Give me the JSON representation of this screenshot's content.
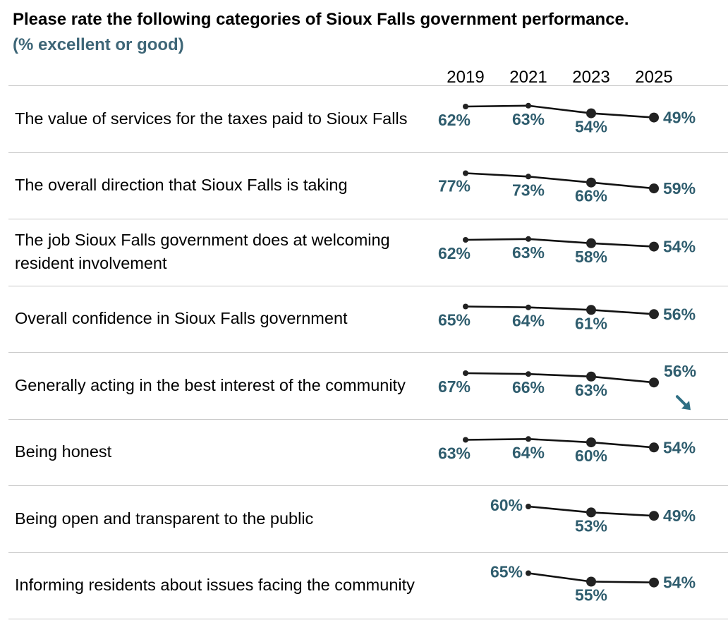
{
  "title": "Please rate the following categories of Sioux Falls government performance.",
  "subtitle": "(% excellent or good)",
  "chart_data": {
    "type": "line",
    "title": "Please rate the following categories of Sioux Falls government performance.",
    "subtitle": "(% excellent or good)",
    "years": [
      "2019",
      "2021",
      "2023",
      "2025"
    ],
    "series": [
      {
        "name": "The value of services for the taxes paid to Sioux Falls",
        "values": [
          62,
          63,
          54,
          49
        ]
      },
      {
        "name": "The overall direction that Sioux Falls is taking",
        "values": [
          77,
          73,
          66,
          59
        ]
      },
      {
        "name": "The job Sioux Falls government does at welcoming resident involvement",
        "values": [
          62,
          63,
          58,
          54
        ]
      },
      {
        "name": "Overall confidence in Sioux Falls government",
        "values": [
          65,
          64,
          61,
          56
        ]
      },
      {
        "name": "Generally acting in the best interest of the community",
        "values": [
          67,
          66,
          63,
          56
        ],
        "trend": "down"
      },
      {
        "name": "Being honest",
        "values": [
          63,
          64,
          60,
          54
        ]
      },
      {
        "name": "Being open and transparent to the public",
        "values": [
          null,
          60,
          53,
          49
        ]
      },
      {
        "name": "Informing residents about issues facing the community",
        "values": [
          null,
          65,
          55,
          54
        ]
      }
    ],
    "value_suffix": "%",
    "colors": {
      "line": "#111111",
      "label": "#2f5d6e",
      "arrow": "#2f6f84"
    }
  }
}
